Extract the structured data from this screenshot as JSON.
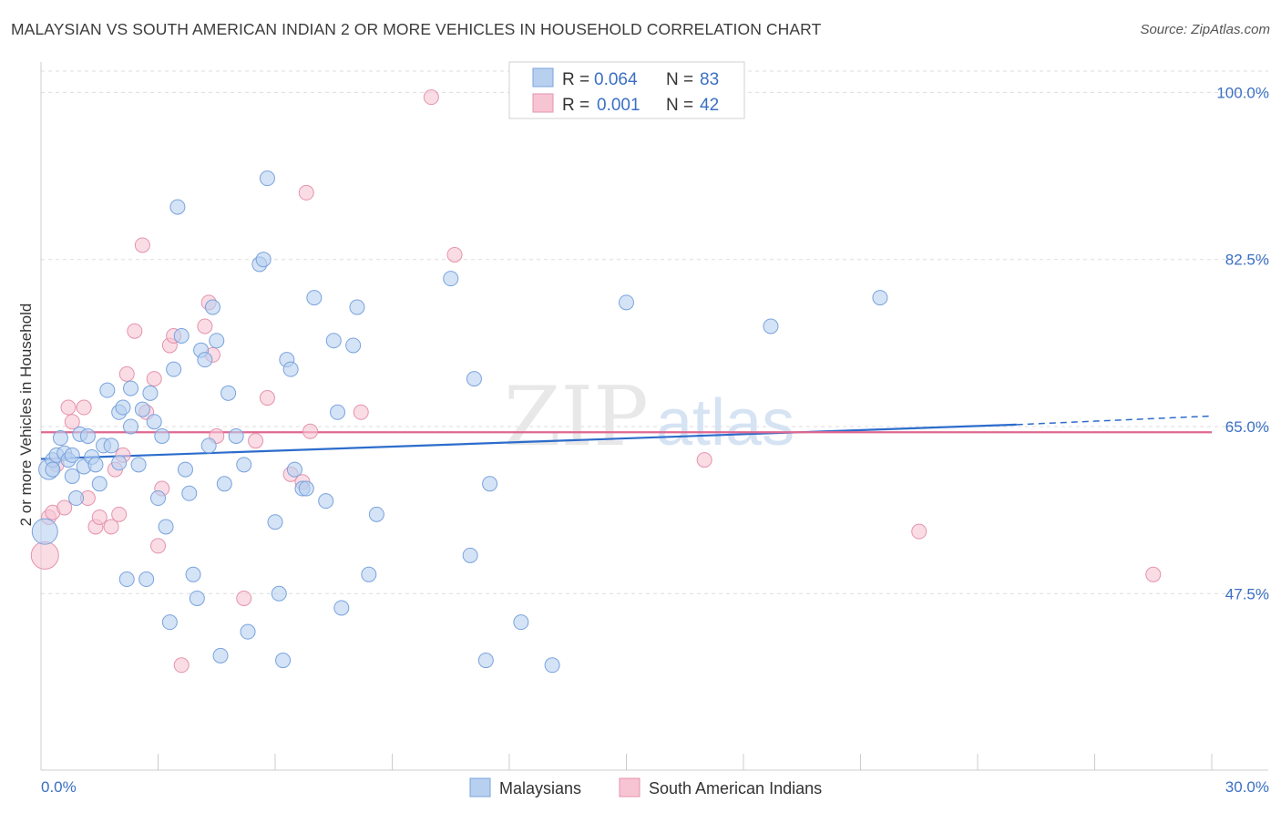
{
  "header": {
    "title": "MALAYSIAN VS SOUTH AMERICAN INDIAN 2 OR MORE VEHICLES IN HOUSEHOLD CORRELATION CHART",
    "source": "Source: ZipAtlas.com"
  },
  "watermark": {
    "zip": "ZIP",
    "atlas": "atlas"
  },
  "colors": {
    "blue_fill": "#b8d0f0",
    "blue_stroke": "#7aa3dd",
    "blue_line": "#2d6ccc",
    "pink_fill": "#f7c4d3",
    "pink_stroke": "#e593ad",
    "pink_line": "#e06890",
    "axis_text": "#3a6fc4",
    "grid": "#dddddd"
  },
  "chart_data": {
    "type": "scatter",
    "title": "MALAYSIAN VS SOUTH AMERICAN INDIAN 2 OR MORE VEHICLES IN HOUSEHOLD CORRELATION CHART",
    "xlabel": "",
    "ylabel": "2 or more Vehicles in Household",
    "xlim": [
      0,
      30
    ],
    "ylim": [
      29,
      103
    ],
    "x_tick_labels": [
      "0.0%",
      "30.0%"
    ],
    "y_ticks": [
      47.5,
      65.0,
      82.5,
      100.0
    ],
    "y_tick_labels": [
      "47.5%",
      "65.0%",
      "82.5%",
      "100.0%"
    ],
    "legend": {
      "position": "top-center",
      "entries": [
        {
          "r_label": "R =",
          "r_value": "0.064",
          "n_label": "N =",
          "n_value": "83"
        },
        {
          "r_label": "R =",
          "r_value": "0.001",
          "n_label": "N =",
          "n_value": "42"
        }
      ]
    },
    "bottom_legend": [
      "Malaysians",
      "South American Indians"
    ],
    "series": [
      {
        "name": "Malaysians",
        "trend": {
          "x": [
            0.0,
            25.0,
            30.0
          ],
          "y": [
            61.6,
            65.2,
            66.1
          ],
          "solid_until": 25.0
        },
        "points": [
          [
            0.1,
            54.0
          ],
          [
            0.2,
            60.5
          ],
          [
            0.3,
            61.5
          ],
          [
            0.4,
            62.0
          ],
          [
            0.5,
            63.8
          ],
          [
            0.6,
            62.2
          ],
          [
            0.7,
            61.5
          ],
          [
            0.8,
            59.8
          ],
          [
            0.9,
            57.5
          ],
          [
            1.0,
            64.2
          ],
          [
            1.1,
            60.8
          ],
          [
            1.2,
            64.0
          ],
          [
            1.3,
            61.8
          ],
          [
            1.4,
            61.0
          ],
          [
            1.5,
            59.0
          ],
          [
            1.6,
            63.0
          ],
          [
            1.7,
            68.8
          ],
          [
            1.8,
            63.0
          ],
          [
            2.0,
            61.2
          ],
          [
            2.0,
            66.5
          ],
          [
            2.1,
            67.0
          ],
          [
            2.2,
            49.0
          ],
          [
            2.3,
            69.0
          ],
          [
            2.3,
            65.0
          ],
          [
            2.5,
            61.0
          ],
          [
            2.6,
            66.8
          ],
          [
            2.7,
            49.0
          ],
          [
            2.8,
            68.5
          ],
          [
            2.9,
            65.5
          ],
          [
            3.0,
            57.5
          ],
          [
            3.1,
            64.0
          ],
          [
            3.2,
            54.5
          ],
          [
            3.3,
            44.5
          ],
          [
            3.4,
            71.0
          ],
          [
            3.5,
            88.0
          ],
          [
            3.6,
            74.5
          ],
          [
            3.7,
            60.5
          ],
          [
            3.8,
            58.0
          ],
          [
            3.9,
            49.5
          ],
          [
            4.0,
            47.0
          ],
          [
            4.1,
            73.0
          ],
          [
            4.2,
            72.0
          ],
          [
            4.3,
            63.0
          ],
          [
            4.4,
            77.5
          ],
          [
            4.5,
            74.0
          ],
          [
            4.6,
            41.0
          ],
          [
            4.7,
            59.0
          ],
          [
            4.8,
            68.5
          ],
          [
            5.0,
            64.0
          ],
          [
            5.2,
            61.0
          ],
          [
            5.3,
            43.5
          ],
          [
            5.6,
            82.0
          ],
          [
            5.7,
            82.5
          ],
          [
            5.8,
            91.0
          ],
          [
            6.0,
            55.0
          ],
          [
            6.1,
            47.5
          ],
          [
            6.2,
            40.5
          ],
          [
            6.3,
            72.0
          ],
          [
            6.4,
            71.0
          ],
          [
            6.5,
            60.5
          ],
          [
            6.7,
            58.5
          ],
          [
            6.8,
            58.5
          ],
          [
            7.0,
            78.5
          ],
          [
            7.3,
            57.2
          ],
          [
            7.5,
            74.0
          ],
          [
            7.6,
            66.5
          ],
          [
            7.7,
            46.0
          ],
          [
            8.0,
            73.5
          ],
          [
            8.1,
            77.5
          ],
          [
            8.4,
            49.5
          ],
          [
            8.6,
            55.8
          ],
          [
            10.5,
            80.5
          ],
          [
            11.0,
            51.5
          ],
          [
            11.1,
            70.0
          ],
          [
            11.4,
            40.5
          ],
          [
            11.5,
            59.0
          ],
          [
            12.3,
            44.5
          ],
          [
            13.1,
            40.0
          ],
          [
            15.0,
            78.0
          ],
          [
            18.7,
            75.5
          ],
          [
            21.5,
            78.5
          ],
          [
            0.3,
            60.5
          ],
          [
            0.8,
            62.0
          ]
        ],
        "sizes": {
          "big": [
            [
              0.1,
              54.0,
              14
            ],
            [
              0.2,
              60.5,
              11
            ]
          ]
        }
      },
      {
        "name": "South American Indians",
        "trend": {
          "x": [
            0.0,
            30.0
          ],
          "y": [
            64.4,
            64.4
          ],
          "solid_until": 30.0
        },
        "points": [
          [
            0.1,
            51.5
          ],
          [
            0.2,
            55.5
          ],
          [
            0.3,
            56.0
          ],
          [
            0.4,
            61.0
          ],
          [
            0.6,
            56.5
          ],
          [
            0.7,
            67.0
          ],
          [
            0.8,
            65.5
          ],
          [
            1.1,
            67.0
          ],
          [
            1.2,
            57.5
          ],
          [
            1.4,
            54.5
          ],
          [
            1.5,
            55.5
          ],
          [
            1.8,
            54.5
          ],
          [
            1.9,
            60.5
          ],
          [
            2.0,
            55.8
          ],
          [
            2.1,
            62.0
          ],
          [
            2.2,
            70.5
          ],
          [
            2.4,
            75.0
          ],
          [
            2.6,
            84.0
          ],
          [
            2.7,
            66.5
          ],
          [
            2.9,
            70.0
          ],
          [
            3.0,
            52.5
          ],
          [
            3.1,
            58.5
          ],
          [
            3.3,
            73.5
          ],
          [
            3.4,
            74.5
          ],
          [
            3.6,
            40.0
          ],
          [
            4.2,
            75.5
          ],
          [
            4.3,
            78.0
          ],
          [
            4.4,
            72.5
          ],
          [
            4.5,
            64.0
          ],
          [
            5.2,
            47.0
          ],
          [
            5.5,
            63.5
          ],
          [
            5.8,
            68.0
          ],
          [
            6.4,
            60.0
          ],
          [
            6.7,
            59.2
          ],
          [
            6.8,
            89.5
          ],
          [
            6.9,
            64.5
          ],
          [
            8.2,
            66.5
          ],
          [
            10.0,
            99.5
          ],
          [
            10.6,
            83.0
          ],
          [
            17.0,
            61.5
          ],
          [
            22.5,
            54.0
          ],
          [
            28.5,
            49.5
          ]
        ],
        "sizes": {
          "big": [
            [
              0.1,
              51.5,
              15
            ]
          ]
        }
      }
    ]
  }
}
